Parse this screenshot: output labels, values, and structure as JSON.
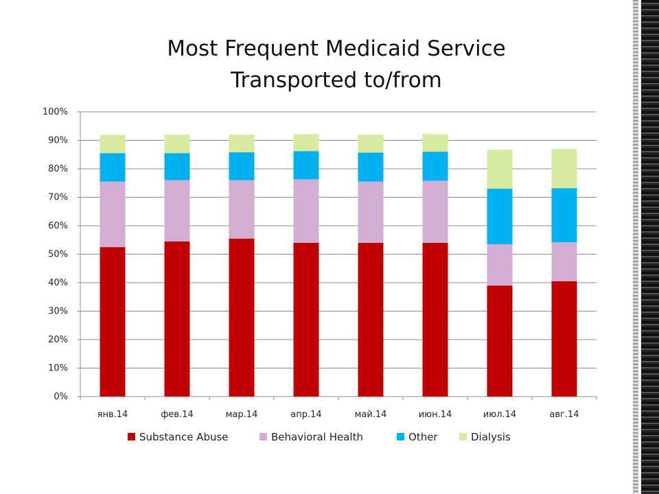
{
  "chart_data": {
    "type": "bar",
    "stacked": true,
    "title_line1": "Most Frequent Medicaid Service",
    "title_line2": "Transported to/from",
    "categories": [
      "янв.14",
      "фев.14",
      "мар.14",
      "апр.14",
      "май.14",
      "июн.14",
      "июл.14",
      "авг.14"
    ],
    "series": [
      {
        "name": "Substance Abuse",
        "color": "#c00000",
        "values": [
          52.5,
          54.5,
          55.5,
          54.0,
          54.0,
          54.0,
          39.0,
          40.5
        ]
      },
      {
        "name": "Behavioral Health",
        "color": "#d3aed3",
        "values": [
          23.0,
          21.5,
          20.5,
          22.3,
          21.5,
          21.8,
          14.5,
          13.7
        ]
      },
      {
        "name": "Other",
        "color": "#00b0f0",
        "values": [
          10.0,
          9.5,
          9.8,
          9.9,
          10.2,
          10.2,
          19.5,
          19.0
        ]
      },
      {
        "name": "Dialysis",
        "color": "#d6eb9f",
        "values": [
          6.4,
          6.5,
          6.2,
          6.0,
          6.3,
          6.2,
          13.7,
          13.8
        ]
      }
    ],
    "y_ticks": [
      "0%",
      "10%",
      "20%",
      "30%",
      "40%",
      "50%",
      "60%",
      "70%",
      "80%",
      "90%",
      "100%"
    ],
    "ylim": [
      0,
      100
    ],
    "grid": true,
    "legend_position": "bottom"
  }
}
